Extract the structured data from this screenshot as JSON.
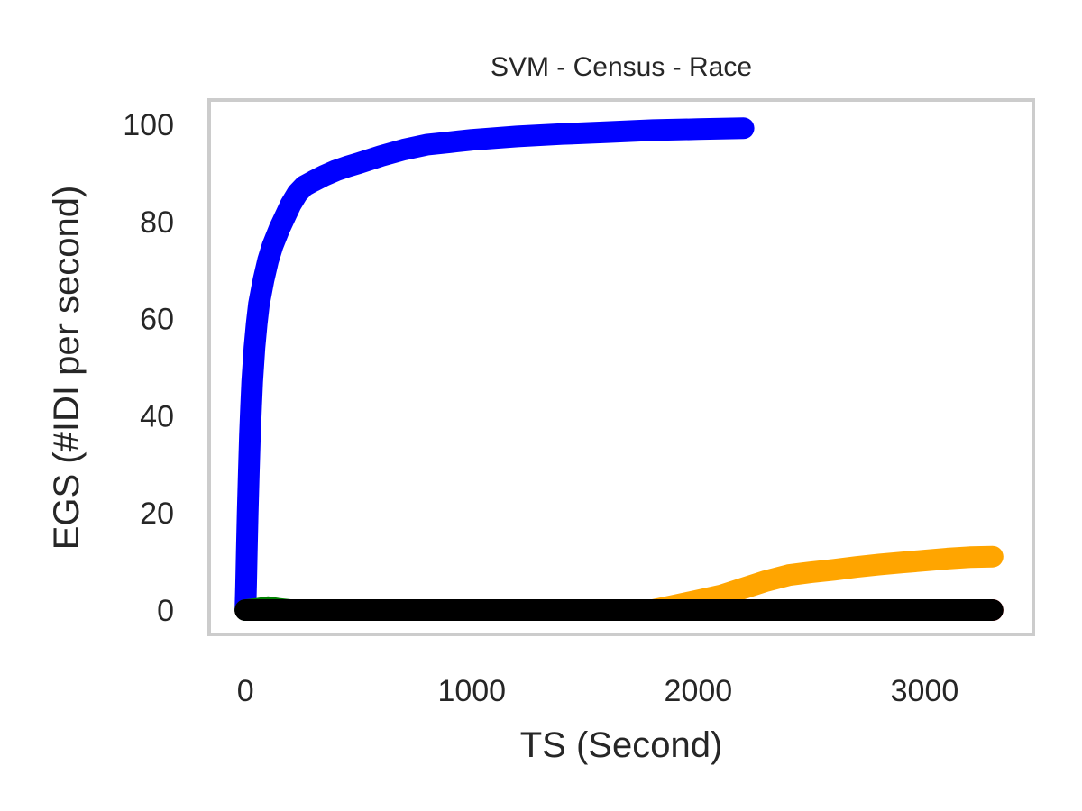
{
  "chart_data": {
    "type": "line",
    "title": "SVM - Census - Race",
    "xlabel": "TS (Second)",
    "ylabel": "EGS (#IDI  per second)",
    "xlim": [
      -160,
      3480
    ],
    "ylim": [
      -5,
      105
    ],
    "xticks": [
      0,
      1000,
      2000,
      3000
    ],
    "yticks": [
      0,
      20,
      40,
      60,
      80,
      100
    ],
    "grid": false,
    "series": [
      {
        "color": "#ff0000",
        "x": [
          0,
          500,
          1000,
          1500,
          2000,
          2500,
          3000,
          3300
        ],
        "y": [
          0,
          0,
          0,
          0,
          0,
          0,
          0,
          0
        ]
      },
      {
        "color": "#ffa500",
        "x": [
          0,
          500,
          1000,
          1500,
          1800,
          1900,
          2000,
          2100,
          2200,
          2300,
          2400,
          2500,
          2600,
          2700,
          2800,
          2900,
          3000,
          3100,
          3200,
          3300
        ],
        "y": [
          0,
          0,
          0,
          0,
          0,
          1.0,
          2.0,
          3.0,
          4.5,
          6.0,
          7.2,
          7.8,
          8.3,
          8.9,
          9.4,
          9.8,
          10.2,
          10.6,
          10.9,
          11.0
        ]
      },
      {
        "color": "#0000ff",
        "x": [
          0,
          3,
          6,
          10,
          15,
          20,
          25,
          30,
          40,
          50,
          60,
          80,
          100,
          120,
          150,
          180,
          200,
          230,
          260,
          300,
          350,
          400,
          450,
          500,
          600,
          700,
          800,
          900,
          1000,
          1200,
          1400,
          1600,
          1800,
          2000,
          2100,
          2200
        ],
        "y": [
          0,
          5,
          12,
          20,
          28,
          36,
          42,
          47,
          54,
          59,
          63,
          68,
          72,
          75,
          78.5,
          81.5,
          83.5,
          85.8,
          87.3,
          88.3,
          89.5,
          90.5,
          91.3,
          92,
          93.5,
          94.8,
          95.8,
          96.3,
          96.8,
          97.5,
          98,
          98.4,
          98.8,
          99,
          99.1,
          99.2
        ]
      },
      {
        "color": "#008000",
        "x": [
          0,
          60,
          100,
          140,
          200
        ],
        "y": [
          0,
          0.3,
          0.6,
          0.3,
          0
        ]
      },
      {
        "color": "#000000",
        "x": [
          0,
          500,
          1000,
          1500,
          2000,
          2500,
          3000,
          3300
        ],
        "y": [
          0,
          0,
          0,
          0,
          0,
          0,
          0,
          0
        ]
      }
    ]
  }
}
